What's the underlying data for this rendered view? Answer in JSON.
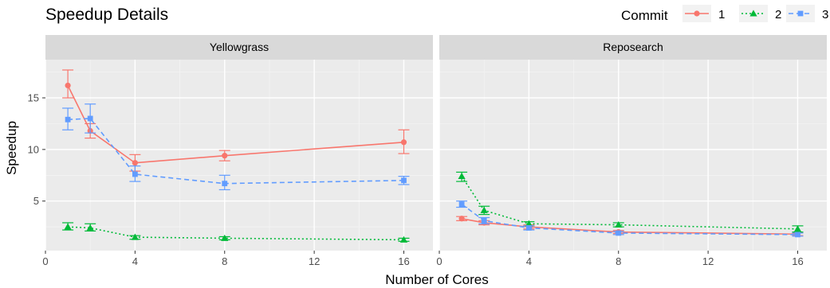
{
  "chart_data": {
    "type": "line",
    "title": "Speedup Details",
    "xlabel": "Number of Cores",
    "ylabel": "Speedup",
    "xlim": [
      0,
      17.3
    ],
    "ylim": [
      0.2,
      18.7
    ],
    "x_ticks": [
      0,
      4,
      8,
      12,
      16
    ],
    "y_ticks": [
      5,
      10,
      15
    ],
    "grid": true,
    "legend": {
      "title": "Commit",
      "placement": "top-right",
      "entries": [
        {
          "label": "1",
          "color": "#F8766D",
          "shape": "circle",
          "dash": "solid"
        },
        {
          "label": "2",
          "color": "#00BA38",
          "shape": "triangle",
          "dash": "dotted"
        },
        {
          "label": "3",
          "color": "#619CFF",
          "shape": "square",
          "dash": "dashed"
        }
      ]
    },
    "x": [
      1,
      2,
      4,
      8,
      16
    ],
    "panels": [
      {
        "name": "Yellowgrass",
        "series": [
          {
            "name": "1",
            "values": [
              16.2,
              11.8,
              8.7,
              9.4,
              10.7
            ],
            "err_low": [
              15.0,
              11.1,
              7.9,
              8.9,
              9.6
            ],
            "err_high": [
              17.7,
              12.5,
              9.5,
              9.9,
              11.9
            ]
          },
          {
            "name": "2",
            "values": [
              2.5,
              2.4,
              1.5,
              1.4,
              1.25
            ],
            "err_low": [
              2.2,
              2.1,
              1.3,
              1.25,
              1.1
            ],
            "err_high": [
              2.9,
              2.8,
              1.65,
              1.55,
              1.4
            ]
          },
          {
            "name": "3",
            "values": [
              12.9,
              13.0,
              7.6,
              6.7,
              7.0
            ],
            "err_low": [
              11.9,
              11.6,
              6.9,
              6.1,
              6.6
            ],
            "err_high": [
              14.0,
              14.4,
              8.4,
              7.5,
              7.4
            ]
          }
        ]
      },
      {
        "name": "Reposearch",
        "series": [
          {
            "name": "1",
            "values": [
              3.3,
              2.9,
              2.5,
              2.0,
              1.8
            ],
            "err_low": [
              3.1,
              2.7,
              2.3,
              1.85,
              1.65
            ],
            "err_high": [
              3.5,
              3.1,
              2.7,
              2.15,
              1.95
            ]
          },
          {
            "name": "2",
            "values": [
              7.4,
              4.1,
              2.8,
              2.7,
              2.3
            ],
            "err_low": [
              6.9,
              3.7,
              2.6,
              2.5,
              2.0
            ],
            "err_high": [
              7.8,
              4.5,
              3.0,
              2.9,
              2.6
            ]
          },
          {
            "name": "3",
            "values": [
              4.7,
              3.1,
              2.4,
              1.9,
              1.75
            ],
            "err_low": [
              4.4,
              2.8,
              2.2,
              1.75,
              1.6
            ],
            "err_high": [
              5.0,
              3.4,
              2.6,
              2.05,
              1.9
            ]
          }
        ]
      }
    ]
  }
}
